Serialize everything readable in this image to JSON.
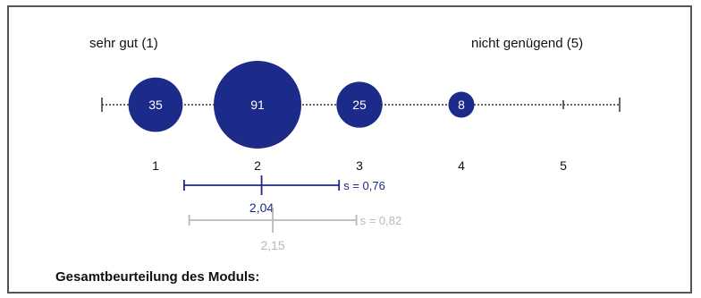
{
  "chart_data": {
    "type": "scatter",
    "left_label": "sehr gut (1)",
    "right_label": "nicht genügend (5)",
    "categories": [
      "1",
      "2",
      "3",
      "4",
      "5"
    ],
    "counts": [
      35,
      91,
      25,
      8,
      0
    ],
    "xlim": [
      0.5,
      5.5
    ],
    "mean_primary": {
      "value": 2.04,
      "label": "2,04",
      "s_label": "s = 0,76",
      "range": [
        1.28,
        2.8
      ]
    },
    "mean_secondary": {
      "value": 2.15,
      "label": "2,15",
      "s_label": "s = 0,82",
      "range": [
        1.33,
        2.97
      ]
    },
    "colors": {
      "primary": "#1c2a8a",
      "secondary": "#b8b8b8",
      "axis": "#333333"
    }
  },
  "footer": {
    "title": "Gesamtbeurteilung des Moduls:"
  }
}
